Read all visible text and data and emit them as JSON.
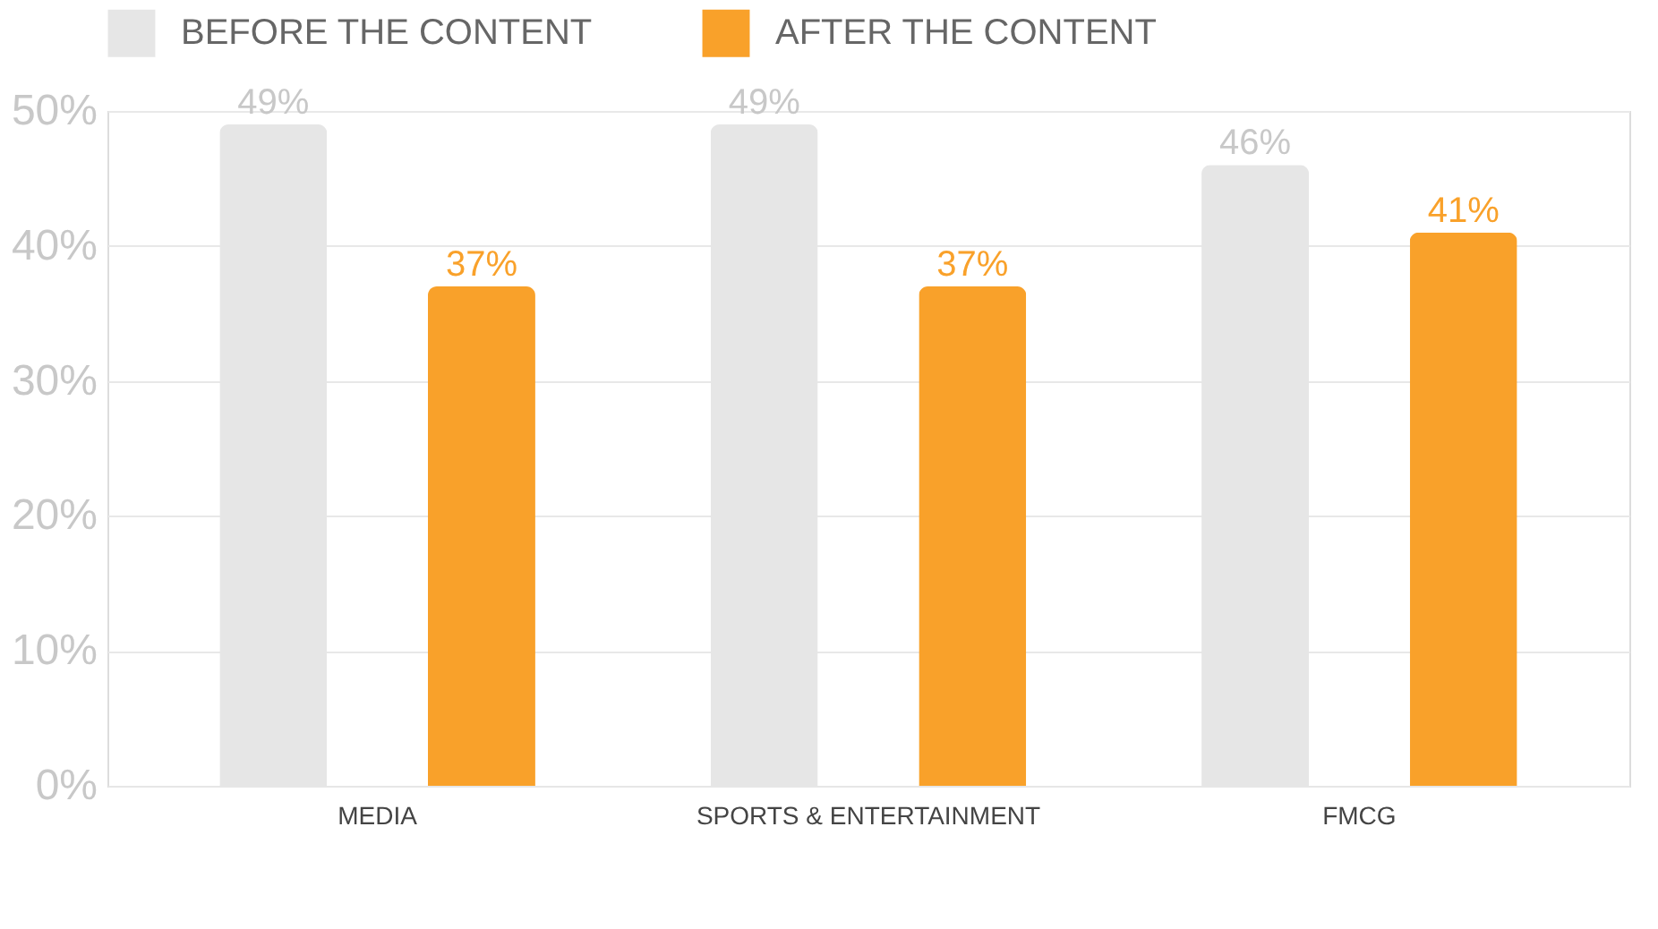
{
  "chart_data": {
    "type": "bar",
    "categories": [
      "MEDIA",
      "SPORTS & ENTERTAINMENT",
      "FMCG"
    ],
    "series": [
      {
        "name": "BEFORE THE CONTENT",
        "color": "#e6e6e6",
        "values": [
          49,
          49,
          46
        ],
        "value_labels": [
          "49%",
          "49%",
          "46%"
        ]
      },
      {
        "name": "AFTER THE CONTENT",
        "color": "#f9a12a",
        "values": [
          37,
          37,
          41
        ],
        "value_labels": [
          "37%",
          "37%",
          "41%"
        ]
      }
    ],
    "ylim": [
      0,
      50
    ],
    "yticks": [
      {
        "value": 0,
        "label": "0%"
      },
      {
        "value": 10,
        "label": "10%"
      },
      {
        "value": 20,
        "label": "20%"
      },
      {
        "value": 30,
        "label": "30%"
      },
      {
        "value": 40,
        "label": "40%"
      },
      {
        "value": 50,
        "label": "50%"
      }
    ],
    "grid": "y",
    "legend": "top"
  }
}
